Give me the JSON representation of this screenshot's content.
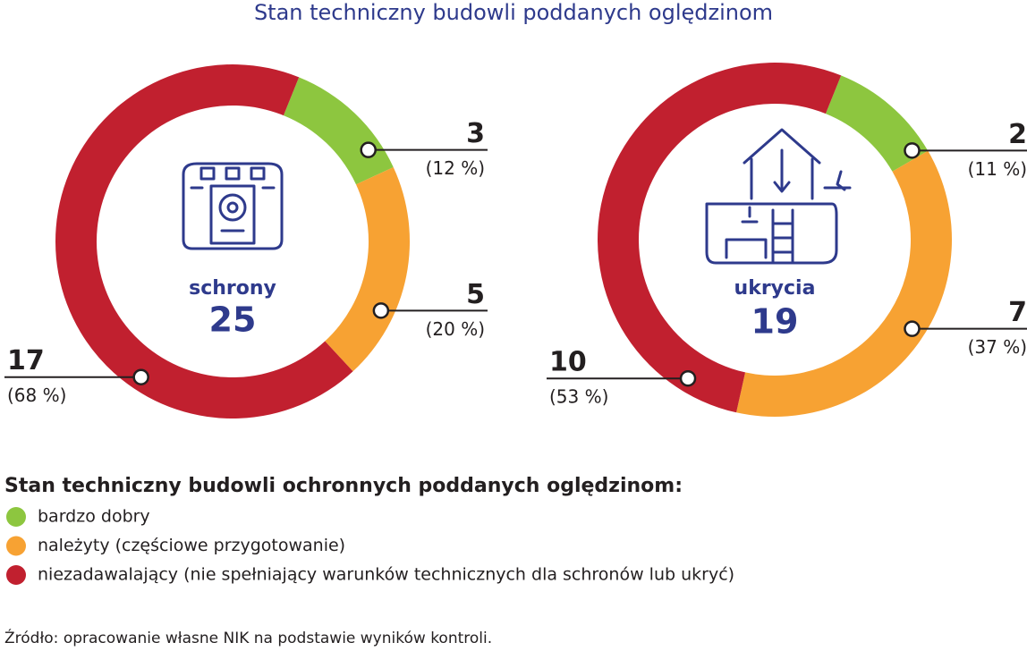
{
  "title": "Stan techniczny budowli poddanych oględzinom",
  "legend": {
    "title": "Stan techniczny budowli ochronnych poddanych oględzinom:",
    "entries": [
      "bardzo dobry",
      "należyty (częściowe przygotowanie)",
      "niezadawalający (nie spełniający warunków technicznych dla schronów lub ukryć)"
    ]
  },
  "source": "Źródło: opracowanie własne NIK na podstawie wyników kontroli.",
  "chart_data": [
    {
      "type": "donut",
      "name": "schrony",
      "total": 25,
      "values": [
        3,
        5,
        17
      ],
      "percents": [
        12,
        20,
        68
      ],
      "percent_labels": [
        "(12 %)",
        "(20 %)",
        "(68 %)"
      ],
      "colors": [
        "#8dc63f",
        "#f7a233",
        "#c1202f"
      ]
    },
    {
      "type": "donut",
      "name": "ukrycia",
      "total": 19,
      "values": [
        2,
        7,
        10
      ],
      "percents": [
        11,
        37,
        53
      ],
      "percent_labels": [
        "(11 %)",
        "(37 %)",
        "(53 %)"
      ],
      "colors": [
        "#8dc63f",
        "#f7a233",
        "#c1202f"
      ]
    }
  ]
}
